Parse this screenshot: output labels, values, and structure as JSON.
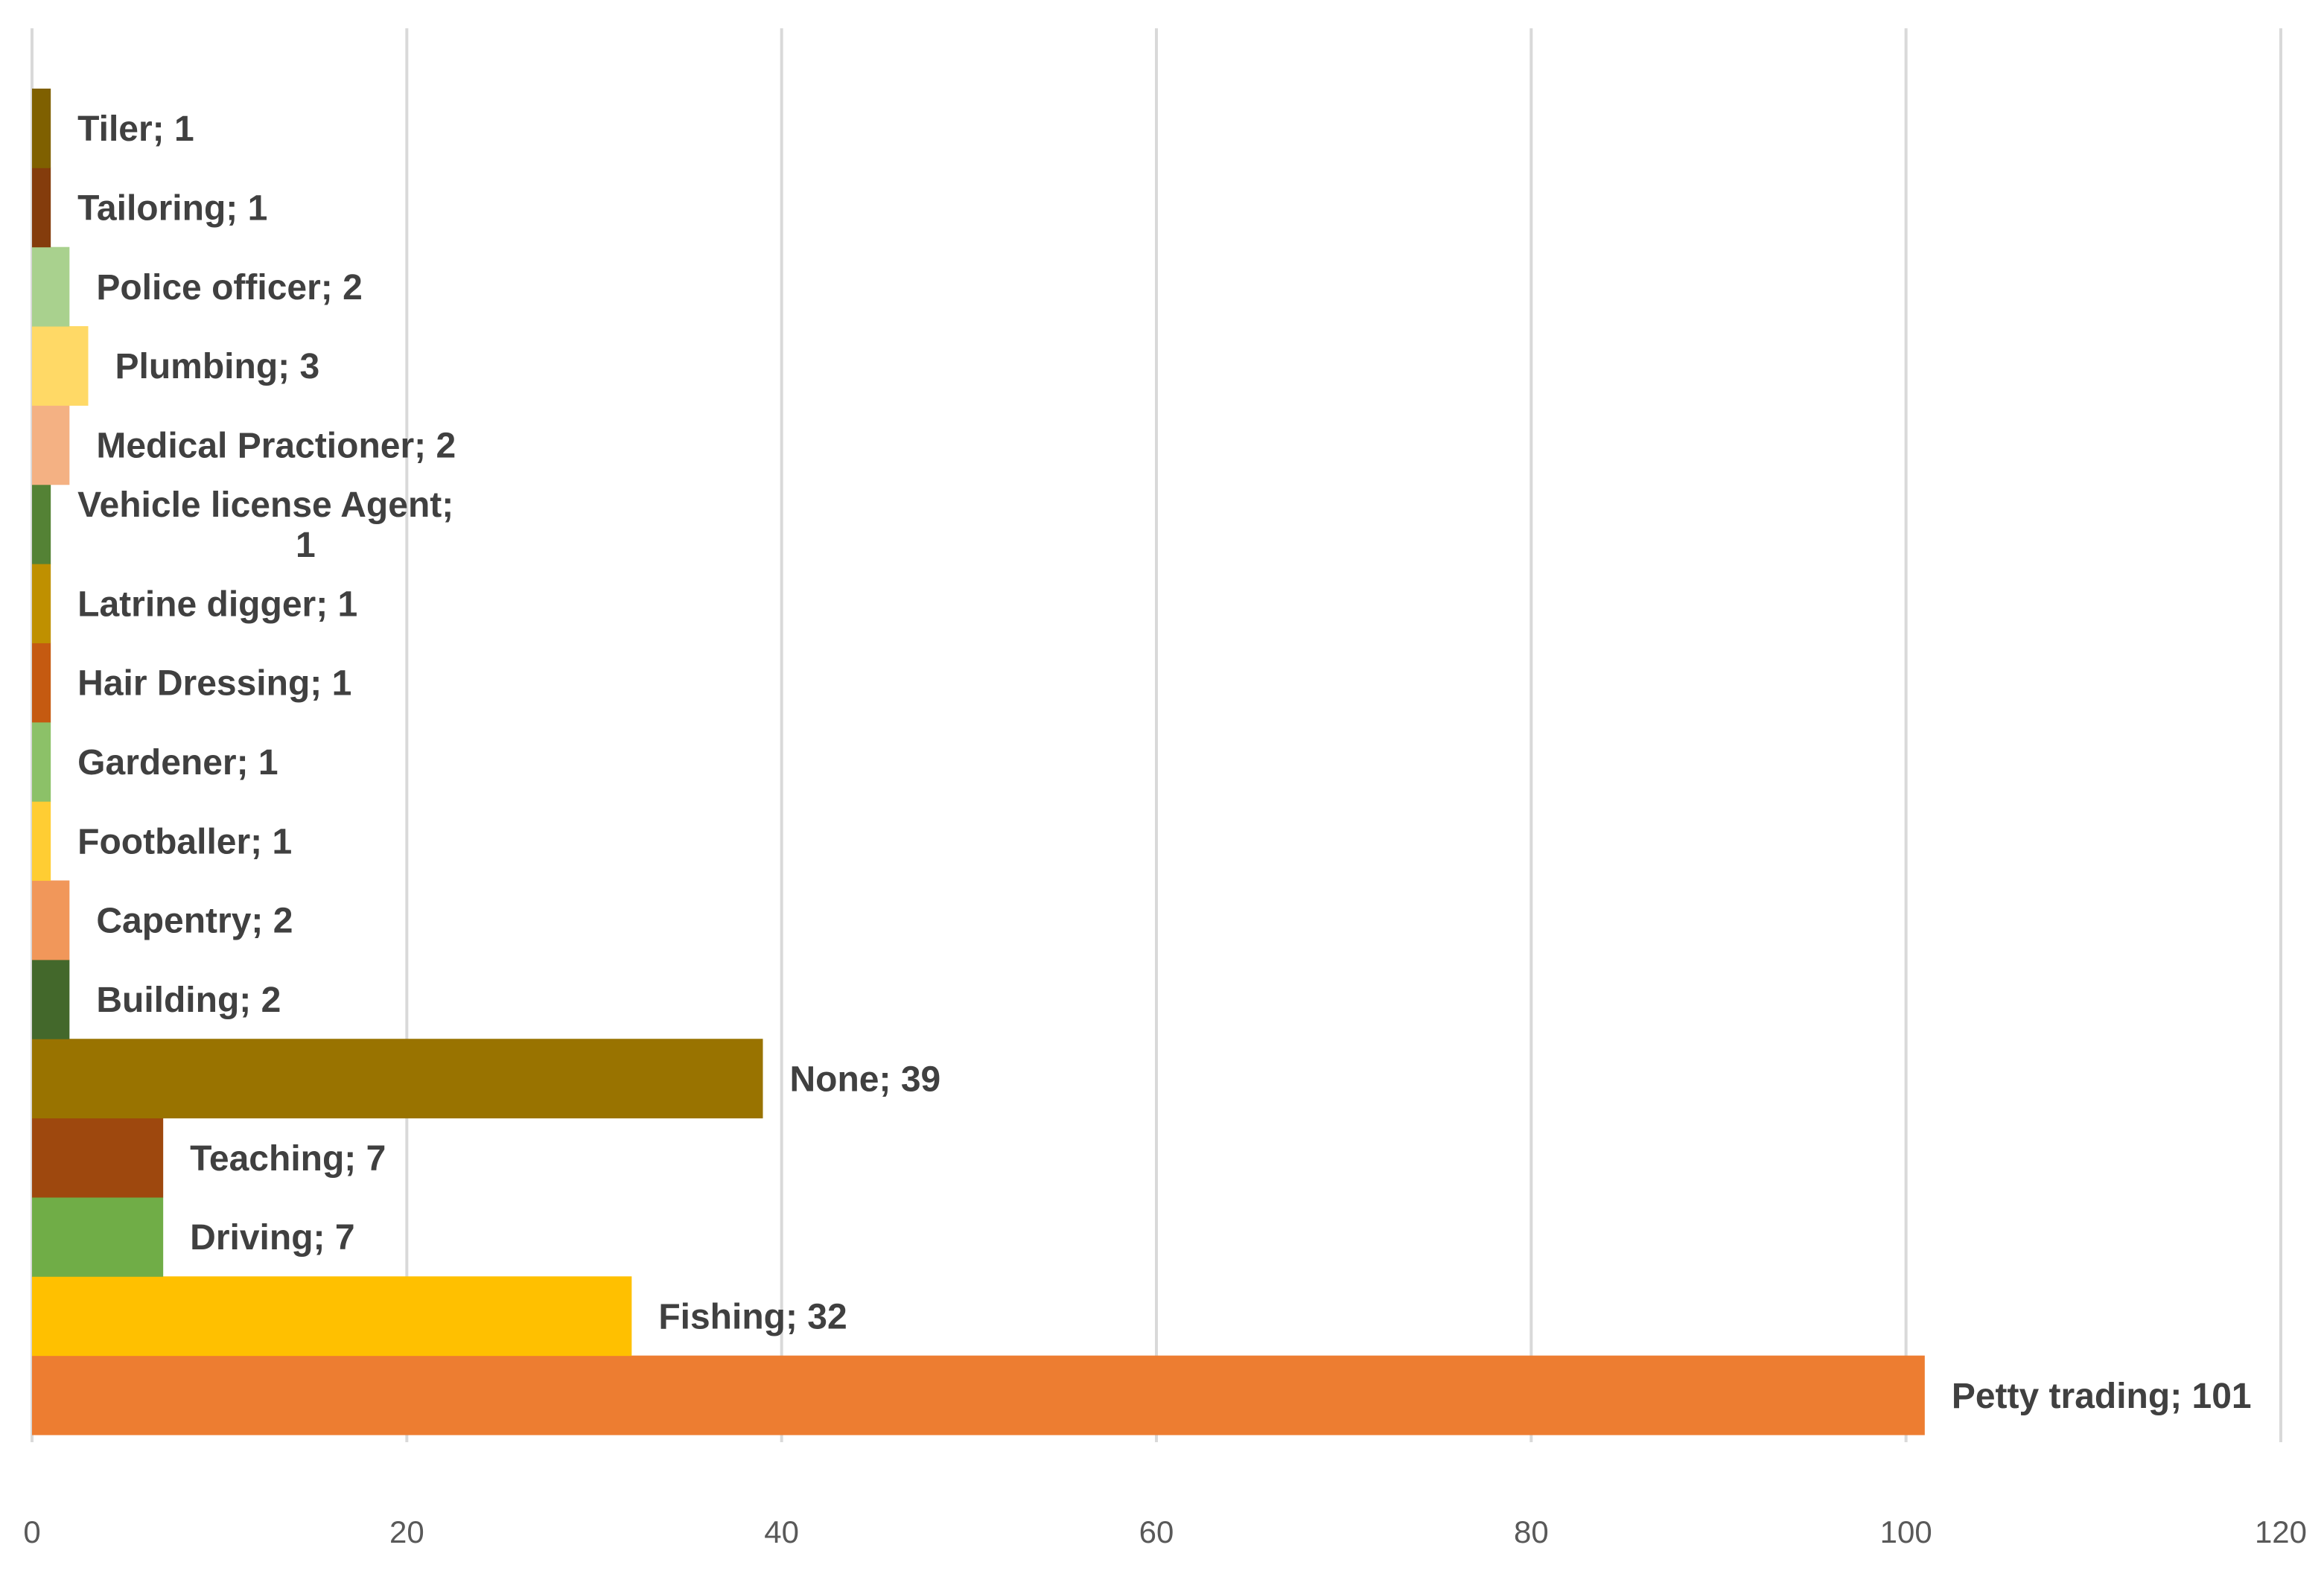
{
  "chart_data": {
    "type": "bar",
    "orientation": "horizontal",
    "title": "",
    "xlabel": "",
    "ylabel": "",
    "xlim": [
      0,
      120
    ],
    "x_ticks": [
      "0",
      "20",
      "40",
      "60",
      "80",
      "100",
      "120"
    ],
    "grid": true,
    "legend": "none",
    "bars": [
      {
        "category": "Petty trading",
        "value": 101,
        "label": "Petty trading; 101",
        "color": "#ED7D31"
      },
      {
        "category": "Fishing",
        "value": 32,
        "label": "Fishing; 32",
        "color": "#FFC000"
      },
      {
        "category": "Driving",
        "value": 7,
        "label": "Driving; 7",
        "color": "#70AD47"
      },
      {
        "category": "Teaching",
        "value": 7,
        "label": "Teaching; 7",
        "color": "#9E480E"
      },
      {
        "category": "None",
        "value": 39,
        "label": "None; 39",
        "color": "#997300"
      },
      {
        "category": "Building",
        "value": 2,
        "label": "Building; 2",
        "color": "#43682B"
      },
      {
        "category": "Capentry",
        "value": 2,
        "label": "Capentry; 2",
        "color": "#F1975A"
      },
      {
        "category": "Footballer",
        "value": 1,
        "label": "Footballer; 1",
        "color": "#FFCD33"
      },
      {
        "category": "Gardener",
        "value": 1,
        "label": "Gardener; 1",
        "color": "#8CC168"
      },
      {
        "category": "Hair Dressing",
        "value": 1,
        "label": "Hair Dressing; 1",
        "color": "#C55A11"
      },
      {
        "category": "Latrine digger",
        "value": 1,
        "label": "Latrine digger; 1",
        "color": "#BF9000"
      },
      {
        "category": "Vehicle license Agent",
        "value": 1,
        "label": "Vehicle license Agent;",
        "label_line2": "1",
        "color": "#548235"
      },
      {
        "category": "Medical Practioner",
        "value": 2,
        "label": "Medical Practioner; 2",
        "color": "#F4B183"
      },
      {
        "category": "Plumbing",
        "value": 3,
        "label": "Plumbing; 3",
        "color": "#FFD966"
      },
      {
        "category": "Police officer",
        "value": 2,
        "label": "Police officer; 2",
        "color": "#A9D18E"
      },
      {
        "category": "Tailoring",
        "value": 1,
        "label": "Tailoring; 1",
        "color": "#843C0C"
      },
      {
        "category": "Tiler",
        "value": 1,
        "label": "Tiler; 1",
        "color": "#7F6000"
      }
    ]
  }
}
